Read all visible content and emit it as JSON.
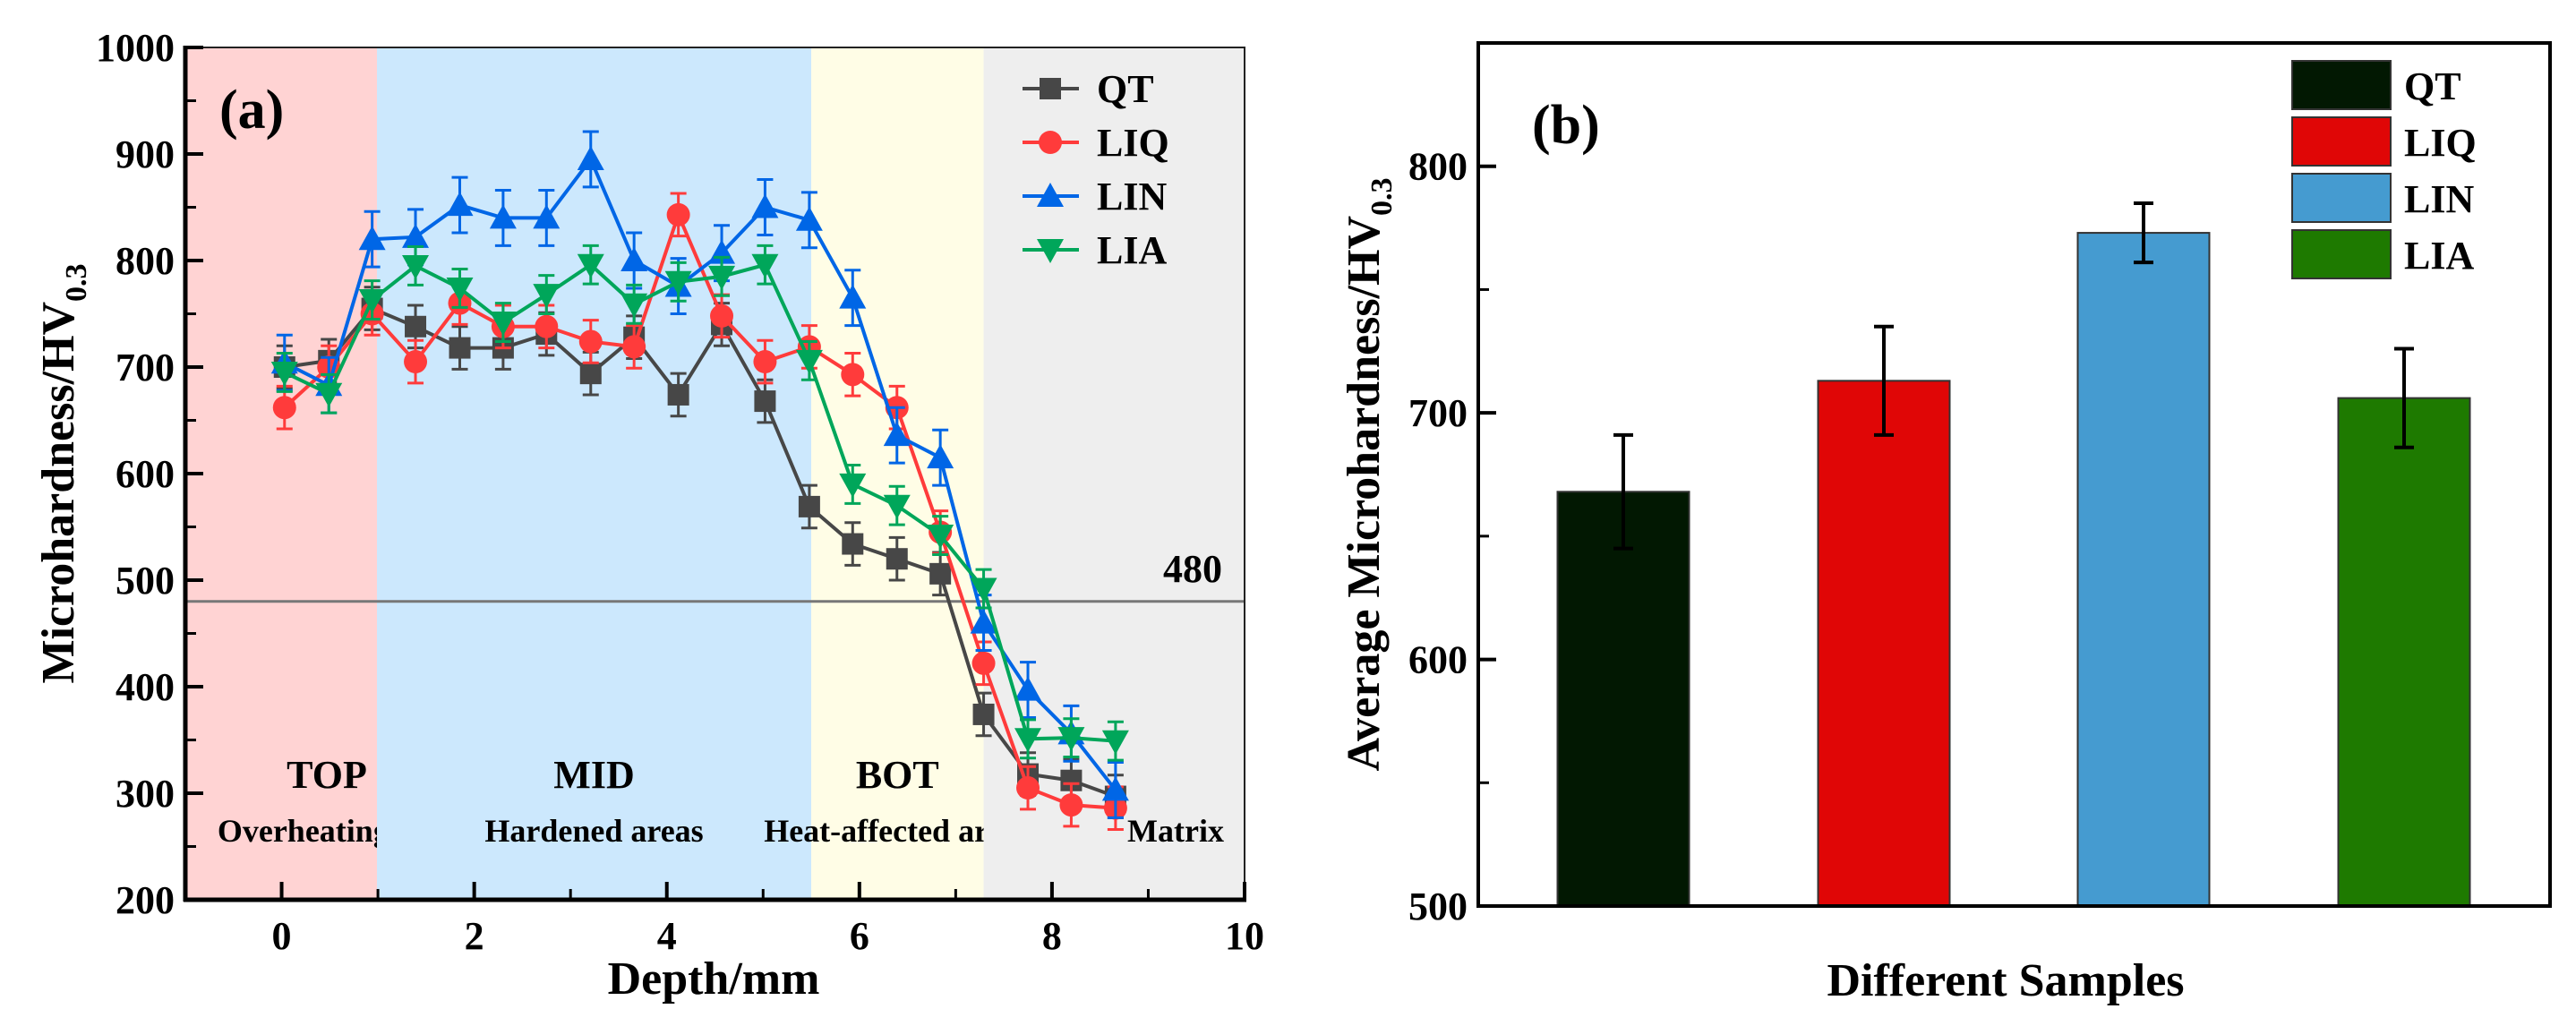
{
  "chart_data": [
    {
      "type": "line",
      "panel_label": "(a)",
      "xlabel": "Depth/mm",
      "ylabel": "Microhardness/HV",
      "ylabel_sub": "0.3",
      "xlim": [
        -1,
        10
      ],
      "ylim": [
        200,
        1000
      ],
      "xticks": [
        "0",
        "2",
        "4",
        "6",
        "8",
        "10"
      ],
      "xtick_values": [
        0,
        2,
        4,
        6,
        8,
        10
      ],
      "yticks": [
        "200",
        "300",
        "400",
        "500",
        "600",
        "700",
        "800",
        "900",
        "1000"
      ],
      "ytick_values": [
        200,
        300,
        400,
        500,
        600,
        700,
        800,
        900,
        1000
      ],
      "x": [
        0.03,
        0.49,
        0.94,
        1.39,
        1.85,
        2.3,
        2.75,
        3.21,
        3.66,
        4.12,
        4.57,
        5.02,
        5.48,
        5.93,
        6.39,
        6.84,
        7.29,
        7.75,
        8.2,
        8.66
      ],
      "series": [
        {
          "name": "QT",
          "color": "#474747",
          "marker": "square",
          "error": 20,
          "values": [
            700,
            706,
            755,
            738,
            718,
            718,
            731,
            694,
            728,
            674,
            740,
            668,
            569,
            534,
            520,
            506,
            374,
            318,
            312,
            297
          ]
        },
        {
          "name": "LIQ",
          "color": "#ff3b3b",
          "marker": "circle",
          "error": 20,
          "values": [
            662,
            700,
            750,
            705,
            760,
            738,
            738,
            724,
            719,
            843,
            748,
            705,
            719,
            693,
            662,
            545,
            422,
            305,
            289,
            286
          ]
        },
        {
          "name": "LIN",
          "color": "#0066e6",
          "marker": "triangle-up",
          "error": 26,
          "values": [
            704,
            683,
            820,
            822,
            852,
            840,
            840,
            895,
            800,
            776,
            807,
            850,
            838,
            765,
            636,
            615,
            460,
            397,
            356,
            303
          ]
        },
        {
          "name": "LIA",
          "color": "#00a65a",
          "marker": "triangle-down",
          "error": 18,
          "values": [
            695,
            675,
            763,
            795,
            774,
            742,
            768,
            796,
            759,
            780,
            785,
            796,
            706,
            590,
            570,
            542,
            492,
            351,
            352,
            349
          ]
        }
      ],
      "zones": [
        {
          "title": "TOP",
          "subtitle": "Overheating areas",
          "from": -1,
          "to": 0.99,
          "color": "#ffd3d3"
        },
        {
          "title": "MID",
          "subtitle": "Hardened areas",
          "from": 0.99,
          "to": 5.5,
          "color": "#cce8fd"
        },
        {
          "title": "BOT",
          "subtitle": "Heat-affected areas",
          "from": 5.5,
          "to": 7.29,
          "color": "#fffde6"
        },
        {
          "title": "",
          "subtitle": "Matrix",
          "from": 7.29,
          "to": 10,
          "color": "#eeeeee"
        }
      ],
      "reference_line": {
        "value": 480,
        "label": "480"
      },
      "legend_position": "top-right"
    },
    {
      "type": "bar",
      "panel_label": "(b)",
      "xlabel": "Different Samples",
      "ylabel": "Average Microhardness/HV",
      "ylabel_sub": "0.3",
      "ylim": [
        500,
        850
      ],
      "yticks": [
        "500",
        "600",
        "700",
        "800"
      ],
      "ytick_values": [
        500,
        600,
        700,
        800
      ],
      "categories": [
        "QT",
        "LIQ",
        "LIN",
        "LIA"
      ],
      "values": [
        668,
        713,
        773,
        706
      ],
      "errors": [
        23,
        22,
        12,
        20
      ],
      "colors": [
        "#021802",
        "#e00606",
        "#459bd0",
        "#1e7a00"
      ],
      "legend_position": "top-right"
    }
  ]
}
